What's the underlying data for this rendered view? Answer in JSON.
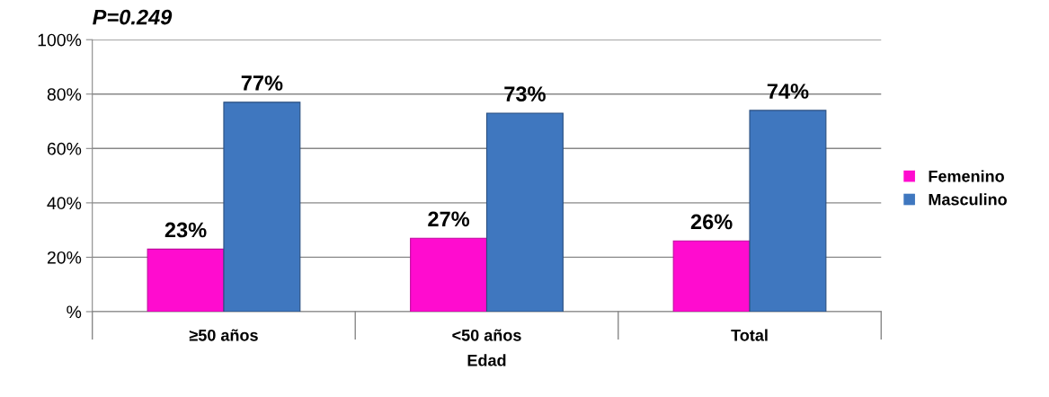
{
  "chart_data": {
    "type": "bar",
    "title": "P=0.249",
    "xlabel": "Edad",
    "categories": [
      "≥50 años",
      "<50 años",
      "Total"
    ],
    "series": [
      {
        "name": "Femenino",
        "color": "#ff0ccf",
        "values": [
          23,
          27,
          26
        ],
        "value_labels": [
          "23%",
          "27%",
          "26%"
        ]
      },
      {
        "name": "Masculino",
        "color": "#3f77bf",
        "values": [
          77,
          73,
          74
        ],
        "value_labels": [
          "77%",
          "73%",
          "74%"
        ]
      }
    ],
    "ylim": [
      0,
      100
    ],
    "yticks": [
      {
        "value": 0,
        "label": "%"
      },
      {
        "value": 20,
        "label": "20%"
      },
      {
        "value": 40,
        "label": "40%"
      },
      {
        "value": 60,
        "label": "60%"
      },
      {
        "value": 80,
        "label": "80%"
      },
      {
        "value": 100,
        "label": "100%"
      }
    ],
    "grid": "y",
    "legend": "right"
  }
}
